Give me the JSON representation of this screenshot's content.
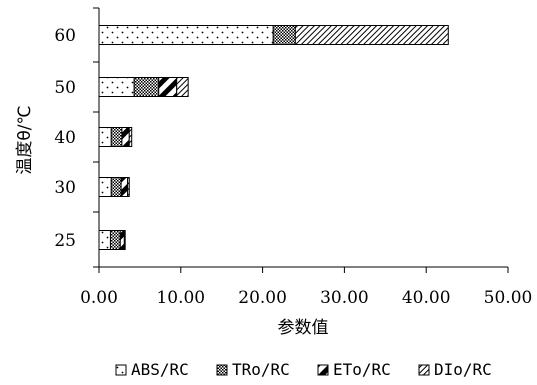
{
  "chart_data": {
    "type": "bar",
    "orientation": "horizontal",
    "stacked": true,
    "categories": [
      "25",
      "30",
      "40",
      "50",
      "60"
    ],
    "series": [
      {
        "name": "ABS/RC",
        "values": [
          1.4,
          1.5,
          1.5,
          4.3,
          21.3
        ],
        "color": "#ffffff",
        "pattern": "dots"
      },
      {
        "name": "TRo/RC",
        "values": [
          1.2,
          1.2,
          1.3,
          3.0,
          2.7
        ],
        "color": "#888888",
        "pattern": "crosshatch"
      },
      {
        "name": "ETo/RC",
        "values": [
          0.5,
          0.8,
          0.9,
          2.2,
          0.0
        ],
        "color": "#ffffff",
        "pattern": "wide-diagonal"
      },
      {
        "name": "DIo/RC",
        "values": [
          0.1,
          0.2,
          0.3,
          1.4,
          18.7
        ],
        "color": "#ffffff",
        "pattern": "fine-diagonal"
      }
    ],
    "xlabel": "参数值",
    "ylabel": "温度θ/℃",
    "xlim": [
      0,
      50
    ],
    "xticks": [
      "0.00",
      "10.00",
      "20.00",
      "30.00",
      "40.00",
      "50.00"
    ],
    "grid": false,
    "legend_position": "bottom"
  }
}
